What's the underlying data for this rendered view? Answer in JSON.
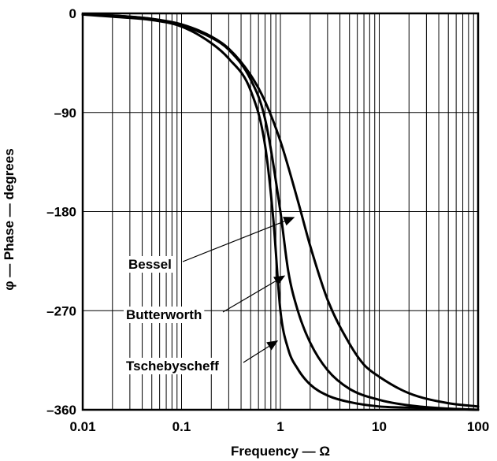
{
  "chart_data": {
    "type": "line",
    "title": "",
    "xlabel": "Frequency — Ω",
    "ylabel": "φ — Phase — degrees",
    "xscale": "log",
    "xlim": [
      0.01,
      100
    ],
    "ylim": [
      -360,
      0
    ],
    "grid": true,
    "x_tick_labels": [
      "0.01",
      "0.1",
      "1",
      "10",
      "100"
    ],
    "x_ticks": [
      0.01,
      0.1,
      1,
      10,
      100
    ],
    "y_tick_labels": [
      "0",
      "–90",
      "–180",
      "–270",
      "–360"
    ],
    "y_ticks": [
      0,
      -90,
      -180,
      -270,
      -360
    ],
    "series": [
      {
        "name": "Bessel",
        "x": [
          0.01,
          0.02,
          0.05,
          0.1,
          0.2,
          0.3,
          0.5,
          0.7,
          1,
          1.5,
          2,
          3,
          5,
          7,
          10,
          20,
          50,
          100
        ],
        "values": [
          -1,
          -2,
          -5,
          -10,
          -21,
          -32,
          -56,
          -80,
          -116,
          -170,
          -211,
          -260,
          -300,
          -319,
          -330,
          -345,
          -354,
          -357
        ]
      },
      {
        "name": "Butterworth",
        "x": [
          0.01,
          0.02,
          0.05,
          0.1,
          0.2,
          0.3,
          0.5,
          0.7,
          1,
          1.2,
          1.5,
          2,
          3,
          5,
          10,
          20,
          50,
          100
        ],
        "values": [
          -1,
          -2,
          -5,
          -11,
          -22,
          -33,
          -60,
          -96,
          -180,
          -234,
          -270,
          -299,
          -324,
          -341,
          -351,
          -356,
          -359,
          -360
        ]
      },
      {
        "name": "Tschebyscheff",
        "x": [
          0.01,
          0.02,
          0.05,
          0.1,
          0.2,
          0.3,
          0.5,
          0.7,
          0.85,
          1,
          1.2,
          1.5,
          2,
          3,
          5,
          10,
          20,
          50,
          100
        ],
        "values": [
          -1,
          -3,
          -6,
          -12,
          -27,
          -41,
          -70,
          -120,
          -188,
          -270,
          -305,
          -323,
          -337,
          -347,
          -353,
          -357,
          -358,
          -359,
          -360
        ]
      }
    ],
    "annotations": [
      {
        "text": "Bessel",
        "points_to": {
          "x": 1.4,
          "y": -185
        }
      },
      {
        "text": "Butterworth",
        "points_to": {
          "x": 1.12,
          "y": -238
        }
      },
      {
        "text": "Tschebyscheff",
        "points_to": {
          "x": 0.95,
          "y": -297
        }
      }
    ]
  }
}
